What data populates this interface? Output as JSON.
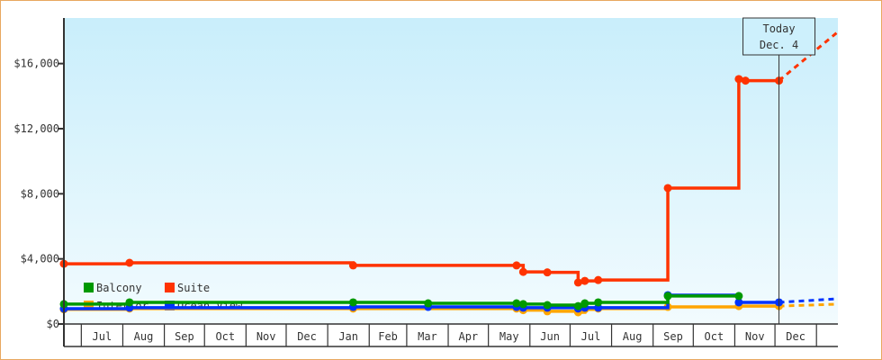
{
  "chart_data": {
    "type": "line",
    "step": true,
    "xlim": [
      "2022-06-18",
      "2024-01-17"
    ],
    "ylim": [
      0,
      18800
    ],
    "yticks": [
      0,
      4000,
      8000,
      12000,
      16000
    ],
    "ytick_labels": [
      "$0",
      "$4,000",
      "$8,000",
      "$12,000",
      "$16,000"
    ],
    "month_ticks": [
      {
        "label": "Jul",
        "start": "2022-07-01",
        "end": "2022-08-01"
      },
      {
        "label": "Aug",
        "start": "2022-08-01",
        "end": "2022-09-01"
      },
      {
        "label": "Sep",
        "start": "2022-09-01",
        "end": "2022-10-01"
      },
      {
        "label": "Oct",
        "start": "2022-10-01",
        "end": "2022-11-01"
      },
      {
        "label": "Nov",
        "start": "2022-11-01",
        "end": "2022-12-01"
      },
      {
        "label": "Dec",
        "start": "2022-12-01",
        "end": "2023-01-01"
      },
      {
        "label": "Jan",
        "start": "2023-01-01",
        "end": "2023-02-01"
      },
      {
        "label": "Feb",
        "start": "2023-02-01",
        "end": "2023-03-01"
      },
      {
        "label": "Mar",
        "start": "2023-03-01",
        "end": "2023-04-01"
      },
      {
        "label": "Apr",
        "start": "2023-04-01",
        "end": "2023-05-01"
      },
      {
        "label": "May",
        "start": "2023-05-01",
        "end": "2023-06-01"
      },
      {
        "label": "Jun",
        "start": "2023-06-01",
        "end": "2023-07-01"
      },
      {
        "label": "Jul",
        "start": "2023-07-01",
        "end": "2023-08-01"
      },
      {
        "label": "Aug",
        "start": "2023-08-01",
        "end": "2023-09-01"
      },
      {
        "label": "Sep",
        "start": "2023-09-01",
        "end": "2023-10-01"
      },
      {
        "label": "Oct",
        "start": "2023-10-01",
        "end": "2023-11-01"
      },
      {
        "label": "Nov",
        "start": "2023-11-01",
        "end": "2023-12-01"
      },
      {
        "label": "Dec",
        "start": "2023-12-01",
        "end": "2024-01-01"
      }
    ],
    "today": {
      "date": "2023-12-04",
      "label_line1": "Today",
      "label_line2": "Dec. 4"
    },
    "legend_placement": "bottom-left",
    "series": [
      {
        "name": "Interior",
        "color": "#ffa500",
        "points": [
          [
            "2022-06-18",
            900
          ],
          [
            "2022-08-06",
            950
          ],
          [
            "2023-01-20",
            950
          ],
          [
            "2023-05-22",
            950
          ],
          [
            "2023-05-27",
            850
          ],
          [
            "2023-06-14",
            780
          ],
          [
            "2023-07-07",
            720
          ],
          [
            "2023-07-12",
            900
          ],
          [
            "2023-07-22",
            950
          ],
          [
            "2023-09-12",
            1050
          ],
          [
            "2023-11-04",
            1100
          ],
          [
            "2023-12-04",
            1100
          ]
        ],
        "projection": [
          [
            "2023-12-04",
            1100
          ],
          [
            "2024-01-17",
            1220
          ]
        ]
      },
      {
        "name": "Ocean View",
        "color": "#0033ff",
        "points": [
          [
            "2022-06-18",
            940
          ],
          [
            "2022-08-06",
            1000
          ],
          [
            "2023-01-20",
            1050
          ],
          [
            "2023-03-17",
            1050
          ],
          [
            "2023-05-22",
            1050
          ],
          [
            "2023-05-27",
            1000
          ],
          [
            "2023-06-14",
            1000
          ],
          [
            "2023-07-07",
            950
          ],
          [
            "2023-07-12",
            1000
          ],
          [
            "2023-07-22",
            1000
          ],
          [
            "2023-09-12",
            1770
          ],
          [
            "2023-11-04",
            1330
          ],
          [
            "2023-12-04",
            1330
          ]
        ],
        "projection": [
          [
            "2023-12-04",
            1330
          ],
          [
            "2024-01-17",
            1550
          ]
        ]
      },
      {
        "name": "Balcony",
        "color": "#009900",
        "points": [
          [
            "2022-06-18",
            1220
          ],
          [
            "2022-08-06",
            1330
          ],
          [
            "2023-01-20",
            1330
          ],
          [
            "2023-03-17",
            1270
          ],
          [
            "2023-05-22",
            1270
          ],
          [
            "2023-05-27",
            1220
          ],
          [
            "2023-06-14",
            1160
          ],
          [
            "2023-07-07",
            1100
          ],
          [
            "2023-07-12",
            1270
          ],
          [
            "2023-07-22",
            1330
          ],
          [
            "2023-09-12",
            1720
          ],
          [
            "2023-11-04",
            1720
          ]
        ],
        "projection": []
      },
      {
        "name": "Suite",
        "color": "#ff3300",
        "points": [
          [
            "2022-06-18",
            3700
          ],
          [
            "2022-08-06",
            3760
          ],
          [
            "2023-01-20",
            3600
          ],
          [
            "2023-05-22",
            3600
          ],
          [
            "2023-05-27",
            3200
          ],
          [
            "2023-06-14",
            3170
          ],
          [
            "2023-07-07",
            2550
          ],
          [
            "2023-07-12",
            2650
          ],
          [
            "2023-07-22",
            2700
          ],
          [
            "2023-09-12",
            8350
          ],
          [
            "2023-11-04",
            15050
          ],
          [
            "2023-11-09",
            14950
          ],
          [
            "2023-12-04",
            14950
          ]
        ],
        "projection": [
          [
            "2023-12-04",
            14950
          ],
          [
            "2024-01-17",
            17950
          ]
        ]
      }
    ],
    "legend_order": [
      "Balcony",
      "Suite",
      "Interior",
      "Ocean View"
    ]
  }
}
